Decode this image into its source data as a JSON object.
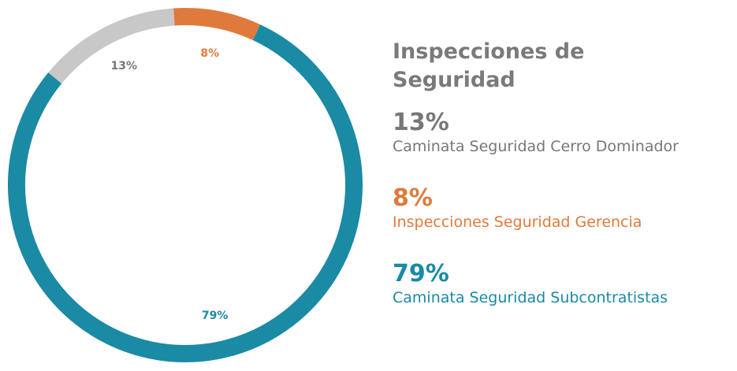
{
  "chart_data": {
    "type": "donut",
    "title": "Inspecciones de Seguridad",
    "categories": [
      "Caminata Seguridad Cerro Dominador",
      "Inspecciones Seguridad Gerencia",
      "Caminata Seguridad Subcontratistas"
    ],
    "values": [
      13,
      8,
      79
    ],
    "value_labels": [
      "13%",
      "8%",
      "79%"
    ],
    "colors": [
      "#c8c8c8",
      "#e07a3c",
      "#1a8aa5"
    ],
    "label_colors": [
      "#777777",
      "#e07a3c",
      "#1a8aa5"
    ]
  }
}
